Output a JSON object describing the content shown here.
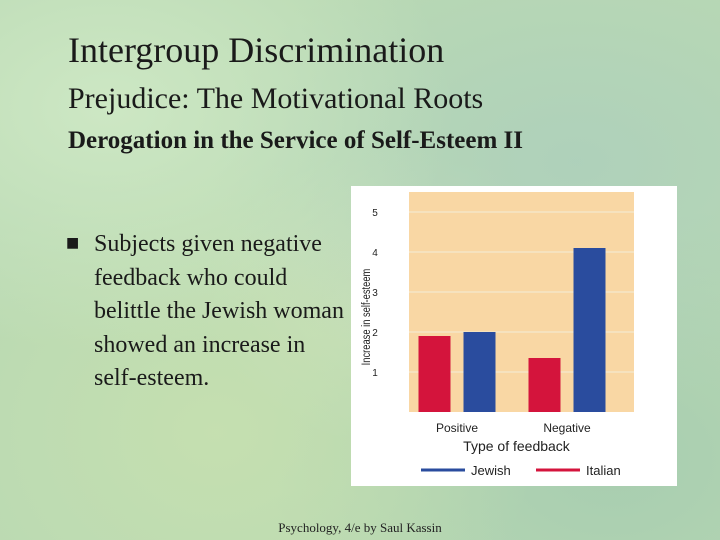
{
  "slide": {
    "title": "Intergroup Discrimination",
    "subtitle": "Prejudice: The Motivational Roots",
    "subsubtitle": "Derogation in the Service of Self-Esteem II",
    "bullet_icon": "square-bullet-icon",
    "bullet_text": "Subjects given negative feedback who could belittle the Jewish woman showed an increase in self-esteem.",
    "footer": "Psychology, 4/e by Saul Kassin"
  },
  "chart_data": {
    "type": "bar",
    "categories": [
      "Positive",
      "Negative"
    ],
    "series": [
      {
        "name": "Italian",
        "color": "#d4143c",
        "values": [
          1.9,
          1.35
        ]
      },
      {
        "name": "Jewish",
        "color": "#2a4c9e",
        "values": [
          2.0,
          4.1
        ]
      }
    ],
    "xlabel": "Type of feedback",
    "ylabel": "Increase in self-esteem",
    "yticks": [
      1,
      2,
      3,
      4,
      5
    ],
    "ylim": [
      0,
      5.5
    ],
    "grid": true,
    "legend": {
      "placement": "bottom",
      "order": [
        "Jewish",
        "Italian"
      ]
    },
    "colors": {
      "plot_background": "#f9d7a4",
      "gridline": "#f2ecd8"
    }
  }
}
